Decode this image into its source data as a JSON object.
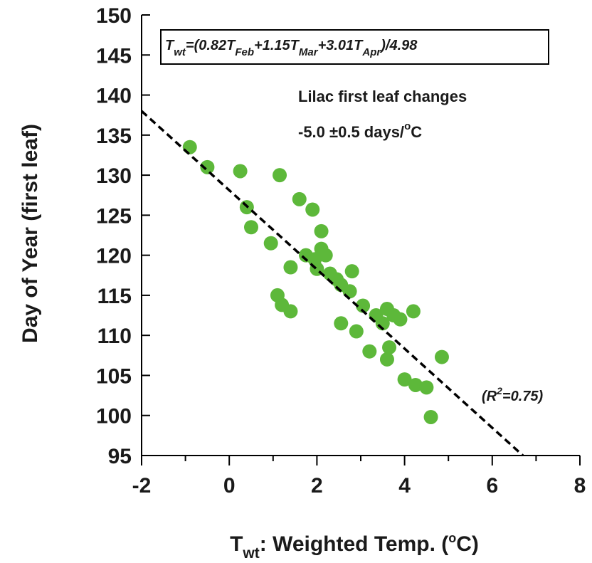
{
  "chart_data": {
    "type": "scatter",
    "title": "",
    "xlabel": {
      "main": "T",
      "sub": "wt",
      "rest": ": Weighted Temp. (",
      "sup": "o",
      "tail": "C)"
    },
    "ylabel": "Day of Year (first leaf)",
    "xlim": [
      -2,
      8
    ],
    "ylim": [
      95,
      150
    ],
    "xticks": [
      "-2",
      "0",
      "2",
      "4",
      "6",
      "8"
    ],
    "xtick_values": [
      -2,
      0,
      2,
      4,
      6,
      8
    ],
    "yticks": [
      "95",
      "100",
      "105",
      "110",
      "115",
      "120",
      "125",
      "130",
      "135",
      "140",
      "145",
      "150"
    ],
    "ytick_values": [
      95,
      100,
      105,
      110,
      115,
      120,
      125,
      130,
      135,
      140,
      145,
      150
    ],
    "grid": false,
    "marker_color": "#5db83a",
    "fit_line": {
      "style": "dashed",
      "color": "#000000",
      "x": [
        -2,
        6.7
      ],
      "y": [
        138,
        95
      ]
    },
    "annotations": {
      "formula": {
        "t1": "T",
        "s1": "wt",
        "t2": "=(0.82T",
        "s2": "Feb",
        "t3": "+1.15T",
        "s3": "Mar",
        "t4": "+3.01T",
        "s4": "Apr",
        "t5": ")/4.98"
      },
      "title_line": "Lilac first leaf changes",
      "rate_main": "-5.0 ±0.5 days/",
      "rate_sup": "o",
      "rate_tail": "C",
      "r2_open": "(R",
      "r2_sup": "2",
      "r2_tail": "=0.75)"
    },
    "series": [
      {
        "points": [
          [
            -0.9,
            133.5
          ],
          [
            -0.5,
            131
          ],
          [
            0.25,
            130.5
          ],
          [
            0.4,
            126
          ],
          [
            0.5,
            123.5
          ],
          [
            0.95,
            121.5
          ],
          [
            1.15,
            130
          ],
          [
            1.1,
            115
          ],
          [
            1.2,
            113.8
          ],
          [
            1.4,
            113
          ],
          [
            1.4,
            118.5
          ],
          [
            1.6,
            127
          ],
          [
            1.75,
            120
          ],
          [
            1.9,
            125.7
          ],
          [
            1.95,
            119.5
          ],
          [
            2.0,
            118.3
          ],
          [
            2.1,
            123
          ],
          [
            2.1,
            120.8
          ],
          [
            2.2,
            120
          ],
          [
            2.3,
            117.7
          ],
          [
            2.45,
            117
          ],
          [
            2.55,
            116.3
          ],
          [
            2.55,
            111.5
          ],
          [
            2.75,
            115.5
          ],
          [
            2.8,
            118
          ],
          [
            2.9,
            110.5
          ],
          [
            3.05,
            113.7
          ],
          [
            3.2,
            108
          ],
          [
            3.35,
            112.5
          ],
          [
            3.5,
            111.5
          ],
          [
            3.6,
            113.3
          ],
          [
            3.6,
            107
          ],
          [
            3.65,
            108.5
          ],
          [
            3.75,
            112.5
          ],
          [
            3.9,
            112
          ],
          [
            4.0,
            104.5
          ],
          [
            4.2,
            113
          ],
          [
            4.25,
            103.8
          ],
          [
            4.5,
            103.5
          ],
          [
            4.6,
            99.8
          ],
          [
            4.85,
            107.3
          ]
        ]
      }
    ]
  }
}
